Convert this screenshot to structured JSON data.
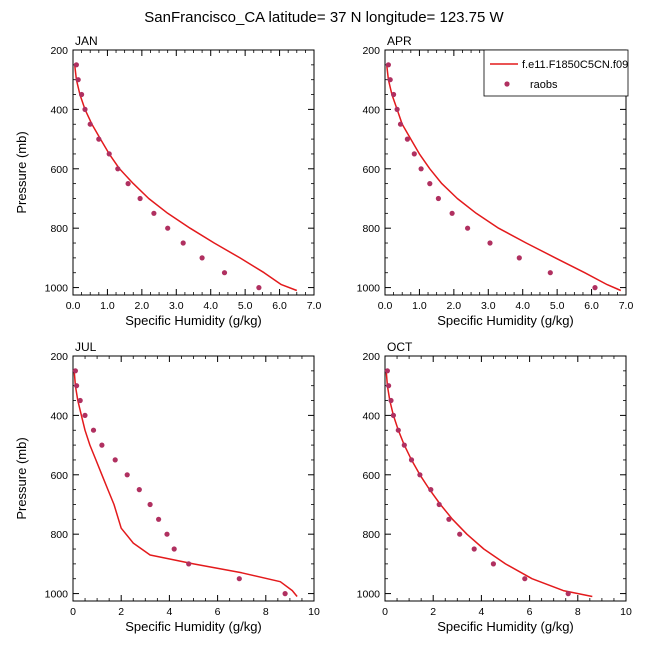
{
  "figure": {
    "title": "SanFrancisco_CA  latitude= 37 N longitude= 123.75 W"
  },
  "legend": {
    "model_label": "f.e11.F1850C5CN.f09",
    "obs_label": "raobs",
    "model_color": "#e31a1c",
    "obs_color": "#b03060",
    "placement": "top-right"
  },
  "chart_data": [
    {
      "type": "line",
      "title": "JAN",
      "xlabel": "Specific Humidity (g/kg)",
      "ylabel": "Pressure (mb)",
      "xlim": [
        0,
        7
      ],
      "ylim": [
        200,
        1025
      ],
      "y_inverted": true,
      "xticks": [
        0,
        1,
        2,
        3,
        4,
        5,
        6,
        7
      ],
      "xtick_labels": [
        "0.0",
        "1.0",
        "2.0",
        "3.0",
        "4.0",
        "5.0",
        "6.0",
        "7.0"
      ],
      "yticks": [
        200,
        400,
        600,
        800,
        1000
      ],
      "ytick_labels": [
        "200",
        "400",
        "600",
        "800",
        "1000"
      ],
      "series": [
        {
          "name": "f.e11.F1850C5CN.f09",
          "kind": "line",
          "x": [
            0.05,
            0.1,
            0.2,
            0.35,
            0.55,
            0.8,
            1.05,
            1.35,
            1.75,
            2.2,
            2.75,
            3.4,
            4.1,
            4.85,
            5.55,
            6.05,
            6.5
          ],
          "y": [
            250,
            300,
            350,
            400,
            450,
            500,
            550,
            600,
            650,
            700,
            750,
            800,
            850,
            900,
            950,
            990,
            1010
          ]
        },
        {
          "name": "raobs",
          "kind": "scatter",
          "x": [
            0.1,
            0.15,
            0.25,
            0.35,
            0.5,
            0.75,
            1.05,
            1.3,
            1.6,
            1.95,
            2.35,
            2.75,
            3.2,
            3.75,
            4.4,
            5.4
          ],
          "y": [
            250,
            300,
            350,
            400,
            450,
            500,
            550,
            600,
            650,
            700,
            750,
            800,
            850,
            900,
            950,
            1000
          ]
        }
      ]
    },
    {
      "type": "line",
      "title": "APR",
      "xlabel": "Specific Humidity (g/kg)",
      "ylabel": "",
      "xlim": [
        0,
        7
      ],
      "ylim": [
        200,
        1025
      ],
      "y_inverted": true,
      "xticks": [
        0,
        1,
        2,
        3,
        4,
        5,
        6,
        7
      ],
      "xtick_labels": [
        "0.0",
        "1.0",
        "2.0",
        "3.0",
        "4.0",
        "5.0",
        "6.0",
        "7.0"
      ],
      "yticks": [
        200,
        400,
        600,
        800,
        1000
      ],
      "ytick_labels": [
        "200",
        "400",
        "600",
        "800",
        "1000"
      ],
      "series": [
        {
          "name": "f.e11.F1850C5CN.f09",
          "kind": "line",
          "x": [
            0.05,
            0.1,
            0.2,
            0.35,
            0.5,
            0.75,
            1.0,
            1.3,
            1.65,
            2.1,
            2.65,
            3.3,
            4.1,
            4.95,
            5.8,
            6.45,
            6.85
          ],
          "y": [
            250,
            300,
            350,
            400,
            450,
            500,
            550,
            600,
            650,
            700,
            750,
            800,
            850,
            900,
            950,
            990,
            1010
          ]
        },
        {
          "name": "raobs",
          "kind": "scatter",
          "x": [
            0.1,
            0.15,
            0.25,
            0.35,
            0.45,
            0.65,
            0.85,
            1.05,
            1.3,
            1.55,
            1.95,
            2.4,
            3.05,
            3.9,
            4.8,
            6.1
          ],
          "y": [
            250,
            300,
            350,
            400,
            450,
            500,
            550,
            600,
            650,
            700,
            750,
            800,
            850,
            900,
            950,
            1000
          ]
        }
      ]
    },
    {
      "type": "line",
      "title": "JUL",
      "xlabel": "Specific Humidity (g/kg)",
      "ylabel": "Pressure (mb)",
      "xlim": [
        0,
        10
      ],
      "ylim": [
        200,
        1025
      ],
      "y_inverted": true,
      "xticks": [
        0,
        2,
        4,
        6,
        8,
        10
      ],
      "xtick_labels": [
        "0",
        "2",
        "4",
        "6",
        "8",
        "10"
      ],
      "yticks": [
        200,
        400,
        600,
        800,
        1000
      ],
      "ytick_labels": [
        "200",
        "400",
        "600",
        "800",
        "1000"
      ],
      "series": [
        {
          "name": "f.e11.F1850C5CN.f09",
          "kind": "line",
          "x": [
            0.05,
            0.1,
            0.2,
            0.35,
            0.5,
            0.7,
            0.95,
            1.2,
            1.45,
            1.7,
            2.0,
            2.5,
            3.2,
            5.0,
            7.0,
            8.6,
            9.1,
            9.3
          ],
          "y": [
            250,
            300,
            350,
            400,
            450,
            500,
            550,
            600,
            650,
            700,
            780,
            830,
            870,
            900,
            930,
            960,
            990,
            1010
          ]
        },
        {
          "name": "raobs",
          "kind": "scatter",
          "x": [
            0.1,
            0.15,
            0.3,
            0.5,
            0.85,
            1.2,
            1.75,
            2.25,
            2.75,
            3.2,
            3.55,
            3.9,
            4.2,
            4.8,
            6.9,
            8.8
          ],
          "y": [
            250,
            300,
            350,
            400,
            450,
            500,
            550,
            600,
            650,
            700,
            750,
            800,
            850,
            900,
            950,
            1000
          ]
        }
      ]
    },
    {
      "type": "line",
      "title": "OCT",
      "xlabel": "Specific Humidity (g/kg)",
      "ylabel": "",
      "xlim": [
        0,
        10
      ],
      "ylim": [
        200,
        1025
      ],
      "y_inverted": true,
      "xticks": [
        0,
        2,
        4,
        6,
        8,
        10
      ],
      "xtick_labels": [
        "0",
        "2",
        "4",
        "6",
        "8",
        "10"
      ],
      "yticks": [
        200,
        400,
        600,
        800,
        1000
      ],
      "ytick_labels": [
        "200",
        "400",
        "600",
        "800",
        "1000"
      ],
      "series": [
        {
          "name": "f.e11.F1850C5CN.f09",
          "kind": "line",
          "x": [
            0.05,
            0.1,
            0.2,
            0.35,
            0.55,
            0.8,
            1.1,
            1.45,
            1.85,
            2.3,
            2.8,
            3.4,
            4.1,
            5.0,
            6.1,
            7.4,
            8.6
          ],
          "y": [
            250,
            300,
            350,
            400,
            450,
            500,
            550,
            600,
            650,
            700,
            750,
            800,
            850,
            900,
            950,
            990,
            1010
          ]
        },
        {
          "name": "raobs",
          "kind": "scatter",
          "x": [
            0.1,
            0.15,
            0.25,
            0.35,
            0.55,
            0.8,
            1.1,
            1.45,
            1.9,
            2.25,
            2.65,
            3.1,
            3.7,
            4.5,
            5.8,
            7.6
          ],
          "y": [
            250,
            300,
            350,
            400,
            450,
            500,
            550,
            600,
            650,
            700,
            750,
            800,
            850,
            900,
            950,
            1000
          ]
        }
      ]
    }
  ]
}
